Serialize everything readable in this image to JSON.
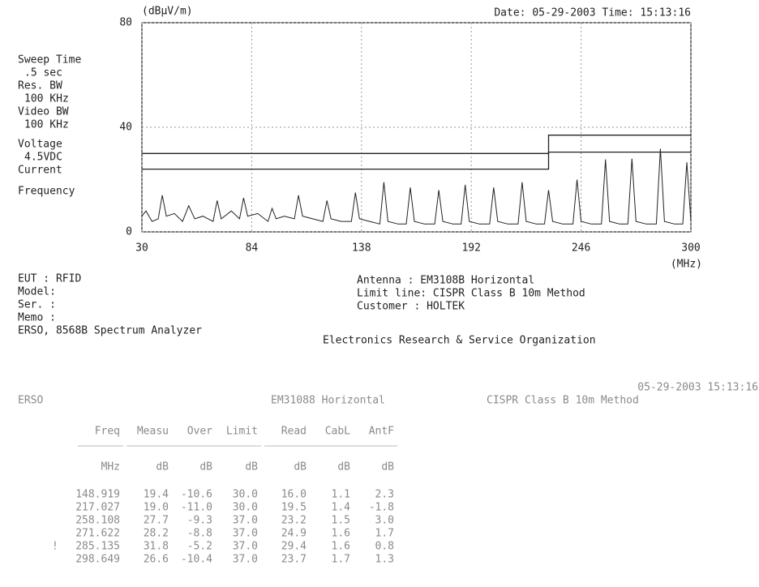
{
  "chart_data": {
    "type": "line",
    "ylabel": "(dBµV/m)",
    "xlabel": "(MHz)",
    "date": "Date: 05-29-2003  Time: 15:13:16",
    "xlim": [
      30,
      300
    ],
    "xticks": [
      30,
      84,
      138,
      192,
      246,
      300
    ],
    "ylim": [
      0,
      80
    ],
    "yticks": [
      0,
      40,
      80
    ],
    "grid": true,
    "series": [
      {
        "color": "#222222",
        "x": [
          30,
          32,
          35,
          38,
          40,
          42,
          46,
          50,
          53,
          56,
          60,
          65,
          67,
          69,
          74,
          78,
          80,
          82,
          87,
          92,
          94,
          96,
          100,
          105,
          107,
          109,
          114,
          119,
          121,
          123,
          128,
          133,
          135,
          137,
          142,
          147,
          149,
          151,
          156,
          160,
          162,
          164,
          169,
          174,
          176,
          178,
          183,
          187,
          189,
          191,
          196,
          201,
          203,
          205,
          210,
          215,
          217,
          219,
          224,
          228,
          230,
          232,
          237,
          242,
          244,
          246,
          251,
          256,
          258,
          260,
          265,
          269,
          271,
          273,
          278,
          283,
          285,
          287,
          292,
          296,
          298,
          300
        ],
        "values": [
          6,
          8,
          4,
          5,
          14,
          6,
          7,
          4,
          10,
          5,
          6,
          4,
          12,
          5,
          8,
          5,
          13,
          6,
          7,
          4,
          9,
          5,
          6,
          5,
          14,
          6,
          5,
          4,
          12,
          5,
          4,
          4,
          15,
          5,
          4,
          3,
          19,
          4,
          3,
          3,
          17,
          4,
          3,
          3,
          16,
          4,
          3,
          3,
          18,
          4,
          3,
          3,
          17,
          4,
          3,
          3,
          19,
          4,
          3,
          3,
          16,
          4,
          3,
          3,
          20,
          4,
          3,
          3,
          27.7,
          4,
          3,
          3,
          28,
          4,
          3,
          3,
          31.8,
          4,
          3,
          3,
          26.6,
          4
        ]
      },
      {
        "color": "#222222",
        "x": [
          30,
          230,
          230,
          300
        ],
        "values": [
          30,
          30,
          37,
          37
        ]
      },
      {
        "color": "#222222",
        "x": [
          30,
          230,
          230,
          300
        ],
        "values": [
          24,
          24,
          30.5,
          30.5
        ]
      }
    ]
  },
  "settings": [
    "Sweep Time",
    ".5 sec",
    "Res. BW",
    "100 KHz",
    "Video BW",
    "100 KHz",
    "Voltage",
    "4.5VDC",
    "Current",
    "Frequency"
  ],
  "info_left": [
    "EUT  : RFID",
    "Model:",
    "Ser. :",
    "Memo :",
    "ERSO, 8568B Spectrum Analyzer"
  ],
  "info_right": [
    "Antenna    : EM3108B Horizontal",
    "Limit line: CISPR  Class B  10m  Method",
    "Customer   : HOLTEK",
    "Electronics Research & Service Organization"
  ],
  "table": {
    "header": [
      "ERSO",
      "EM31088  Horizontal",
      "CISPR  Class B  10m  Method",
      "05-29-2003  15:13:16"
    ],
    "columns": [
      "Freq",
      "Measu",
      "Over",
      "Limit",
      "Read",
      "CabL",
      "AntF"
    ],
    "units": [
      "MHz",
      "dB",
      "dB",
      "dB",
      "dB",
      "dB",
      "dB"
    ],
    "flag": "!",
    "rows": [
      [
        "148.919",
        "19.4",
        "-10.6",
        "30.0",
        "16.0",
        "1.1",
        "2.3"
      ],
      [
        "217.027",
        "19.0",
        "-11.0",
        "30.0",
        "19.5",
        "1.4",
        "-1.8"
      ],
      [
        "258.108",
        "27.7",
        "-9.3",
        "37.0",
        "23.2",
        "1.5",
        "3.0"
      ],
      [
        "271.622",
        "28.2",
        "-8.8",
        "37.0",
        "24.9",
        "1.6",
        "1.7"
      ],
      [
        "285.135",
        "31.8",
        "-5.2",
        "37.0",
        "29.4",
        "1.6",
        "0.8"
      ],
      [
        "298.649",
        "26.6",
        "-10.4",
        "37.0",
        "23.7",
        "1.7",
        "1.3"
      ]
    ]
  }
}
